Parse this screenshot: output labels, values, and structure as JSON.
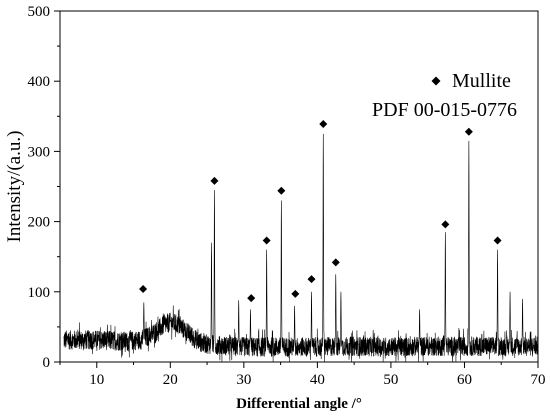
{
  "chart_data": {
    "type": "line",
    "title": "",
    "xlabel": "Differential angle /°",
    "ylabel": "Intensity/(a.u.)",
    "xlim": [
      5,
      70
    ],
    "ylim": [
      0,
      500
    ],
    "x_ticks": [
      10,
      20,
      30,
      40,
      50,
      60,
      70
    ],
    "y_ticks": [
      0,
      100,
      200,
      300,
      400,
      500
    ],
    "grid": false,
    "legend": {
      "entries": [
        "Mullite"
      ],
      "note": "PDF 00-015-0776",
      "placement": "top-right",
      "marker": "diamond"
    },
    "series": [
      {
        "name": "Mullite",
        "baseline": {
          "x": [
            5.5,
            8,
            10,
            12,
            14,
            16,
            17,
            18,
            19,
            20,
            21,
            22,
            23,
            24,
            25,
            27,
            30,
            35,
            40,
            45,
            50,
            55,
            60,
            65,
            70
          ],
          "y": [
            30,
            30,
            30,
            29,
            28,
            30,
            35,
            42,
            50,
            55,
            52,
            44,
            34,
            27,
            24,
            22,
            20,
            20,
            20,
            21,
            20,
            21,
            21,
            21,
            21
          ]
        },
        "noise_amplitude": 28,
        "peaks": [
          {
            "x": 16.4,
            "y": 85
          },
          {
            "x": 26.0,
            "y": 245
          },
          {
            "x": 30.9,
            "y": 75
          },
          {
            "x": 33.1,
            "y": 160
          },
          {
            "x": 35.1,
            "y": 230
          },
          {
            "x": 36.9,
            "y": 80
          },
          {
            "x": 39.2,
            "y": 100
          },
          {
            "x": 40.8,
            "y": 325
          },
          {
            "x": 42.5,
            "y": 125
          },
          {
            "x": 57.4,
            "y": 185
          },
          {
            "x": 60.6,
            "y": 315
          },
          {
            "x": 64.5,
            "y": 160
          }
        ],
        "minor_peaks": [
          {
            "x": 25.6,
            "y": 170
          },
          {
            "x": 43.2,
            "y": 100
          },
          {
            "x": 66.2,
            "y": 100
          },
          {
            "x": 67.9,
            "y": 90
          },
          {
            "x": 53.9,
            "y": 75
          },
          {
            "x": 29.3,
            "y": 88
          }
        ],
        "markers": [
          {
            "x": 16.3,
            "y": 104
          },
          {
            "x": 26.0,
            "y": 258
          },
          {
            "x": 31.0,
            "y": 91
          },
          {
            "x": 33.1,
            "y": 173
          },
          {
            "x": 35.1,
            "y": 244
          },
          {
            "x": 37.0,
            "y": 97
          },
          {
            "x": 39.2,
            "y": 118
          },
          {
            "x": 40.8,
            "y": 339
          },
          {
            "x": 42.5,
            "y": 142
          },
          {
            "x": 57.4,
            "y": 196
          },
          {
            "x": 60.6,
            "y": 328
          },
          {
            "x": 64.5,
            "y": 173
          }
        ]
      }
    ]
  }
}
